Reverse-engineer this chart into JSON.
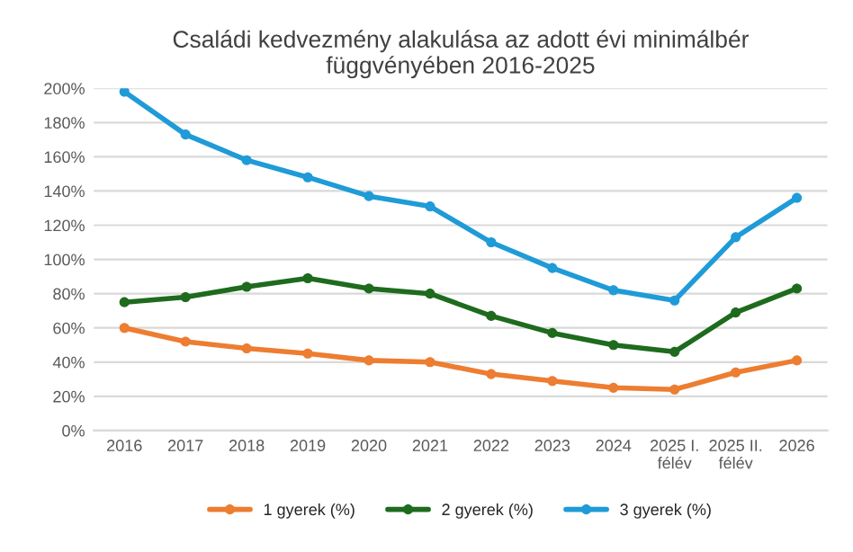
{
  "chart_data": {
    "type": "line",
    "title": "Családi kedvezmény alakulása az adott évi minimálbér\nfüggvényében 2016-2025",
    "categories": [
      "2016",
      "2017",
      "2018",
      "2019",
      "2020",
      "2021",
      "2022",
      "2023",
      "2024",
      "2025 I.\nfélév",
      "2025 II.\nfélév",
      "2026"
    ],
    "series": [
      {
        "name": "1 gyerek (%)",
        "color": "#ed7d31",
        "values": [
          60,
          52,
          48,
          45,
          41,
          40,
          33,
          29,
          25,
          24,
          34,
          41
        ]
      },
      {
        "name": "2 gyerek (%)",
        "color": "#1e6b1e",
        "values": [
          75,
          78,
          84,
          89,
          83,
          80,
          67,
          57,
          50,
          46,
          69,
          83
        ]
      },
      {
        "name": "3 gyerek (%)",
        "color": "#1f9bd7",
        "values": [
          198,
          173,
          158,
          148,
          137,
          131,
          110,
          95,
          82,
          76,
          113,
          136
        ]
      }
    ],
    "ylim": [
      0,
      200
    ],
    "yticks": [
      {
        "value": 0,
        "label": "0%"
      },
      {
        "value": 20,
        "label": "20%"
      },
      {
        "value": 40,
        "label": "40%"
      },
      {
        "value": 60,
        "label": "60%"
      },
      {
        "value": 80,
        "label": "80%"
      },
      {
        "value": 100,
        "label": "100%"
      },
      {
        "value": 120,
        "label": "120%"
      },
      {
        "value": 140,
        "label": "140%"
      },
      {
        "value": 160,
        "label": "160%"
      },
      {
        "value": 180,
        "label": "180%"
      },
      {
        "value": 200,
        "label": "200%"
      }
    ],
    "grid": "y",
    "legend": "bottom",
    "marker": "circle",
    "line_style": "solid"
  }
}
